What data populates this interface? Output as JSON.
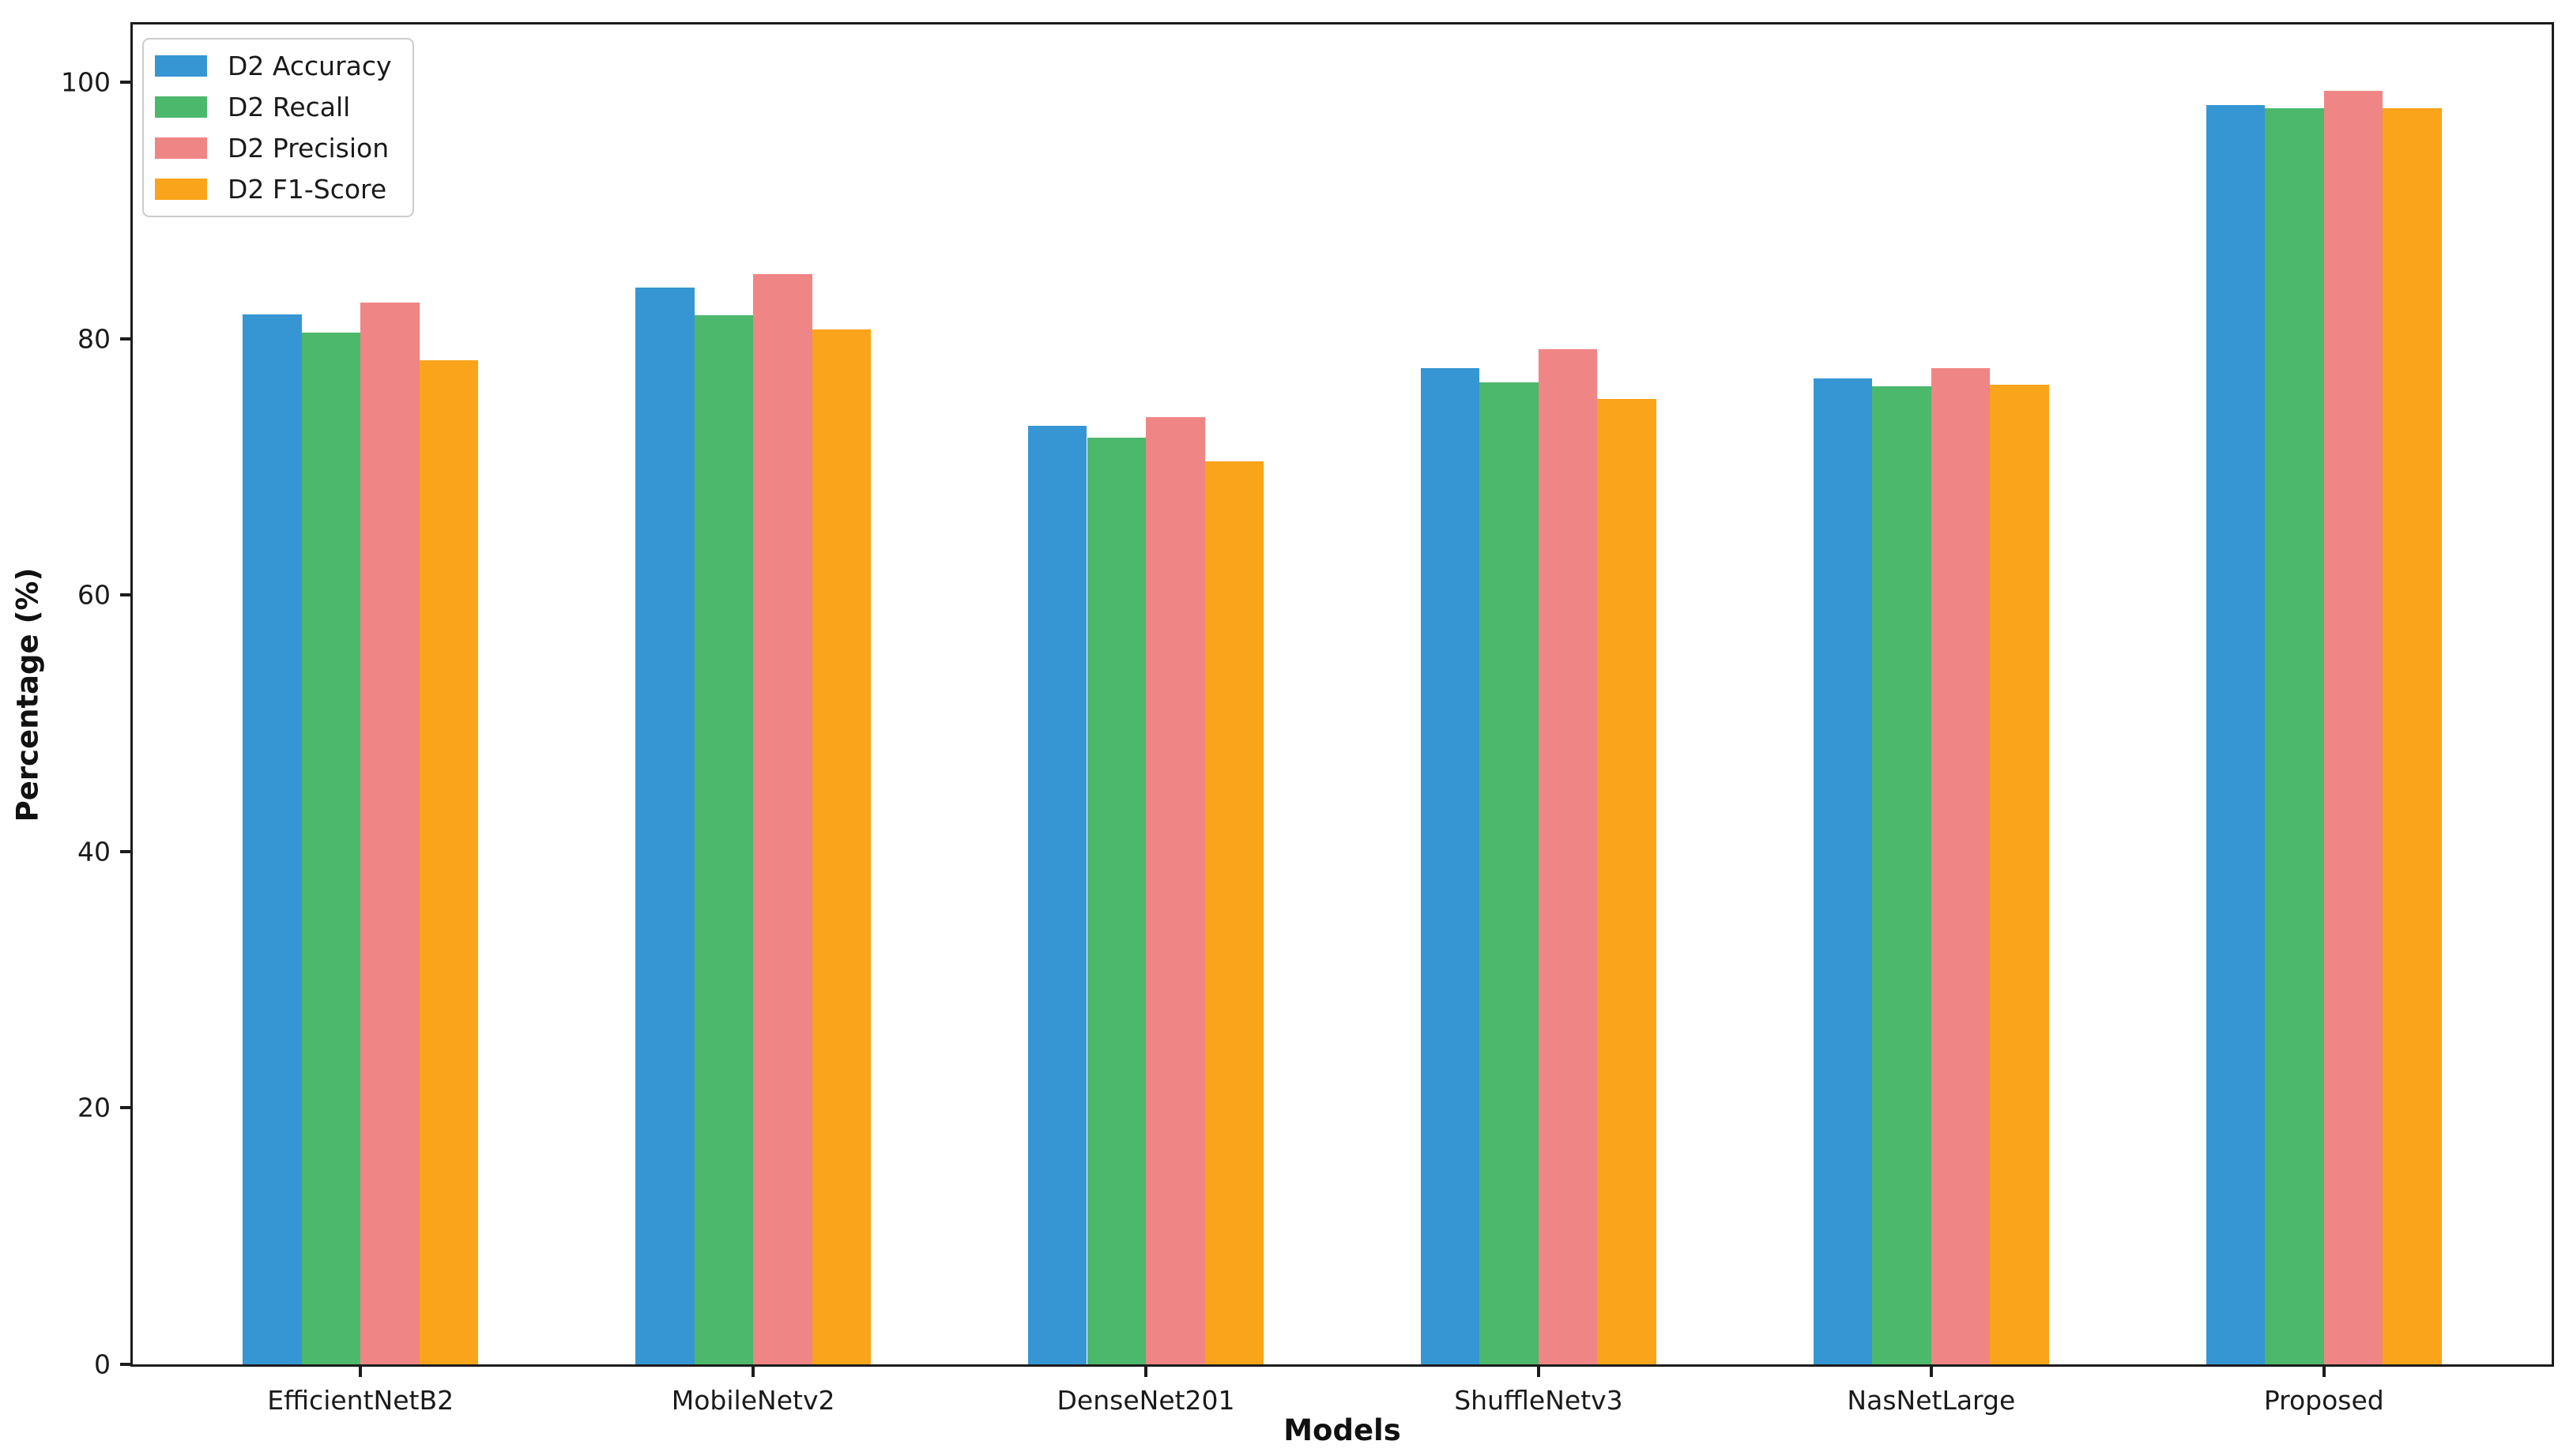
{
  "chart_data": {
    "type": "bar",
    "title": "",
    "xlabel": "Models",
    "ylabel": "Percentage (%)",
    "categories": [
      "EfficientNetB2",
      "MobileNetv2",
      "DenseNet201",
      "ShuffleNetv3",
      "NasNetLarge",
      "Proposed"
    ],
    "series": [
      {
        "name": "D2 Accuracy",
        "color": "#3596d3",
        "values": [
          81.9,
          84.0,
          73.2,
          77.7,
          76.9,
          98.2
        ]
      },
      {
        "name": "D2 Recall",
        "color": "#4bb86c",
        "values": [
          80.5,
          81.8,
          72.3,
          76.6,
          76.3,
          98.0
        ]
      },
      {
        "name": "D2 Precision",
        "color": "#f08585",
        "values": [
          82.8,
          85.0,
          73.9,
          79.2,
          77.7,
          99.3
        ]
      },
      {
        "name": "D2 F1-Score",
        "color": "#f9a41b",
        "values": [
          78.3,
          80.7,
          70.4,
          75.3,
          76.4,
          98.0
        ]
      }
    ],
    "yticks": [
      0,
      20,
      40,
      60,
      80,
      100
    ],
    "ylim": [
      0,
      104.5
    ],
    "xlim": [
      -0.58,
      5.58
    ],
    "bar_width": 0.15,
    "grid": false,
    "legend_position": "upper left",
    "axis_color": "#1c1c1c"
  }
}
